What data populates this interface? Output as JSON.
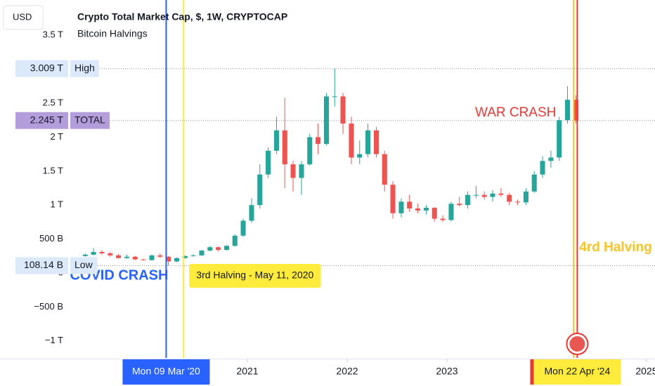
{
  "chart_data": {
    "type": "candlestick",
    "currency": "USD",
    "title": "Crypto Total Market Cap, $, 1W, CRYPTOCAP",
    "subtitle": "Bitcoin Halvings",
    "x": [
      2019.375,
      2019.458,
      2019.542,
      2019.625,
      2019.708,
      2019.792,
      2019.875,
      2019.958,
      2020.042,
      2020.125,
      2020.208,
      2020.292,
      2020.375,
      2020.458,
      2020.542,
      2020.625,
      2020.708,
      2020.792,
      2020.875,
      2020.958,
      2021.042,
      2021.125,
      2021.208,
      2021.292,
      2021.375,
      2021.458,
      2021.542,
      2021.625,
      2021.708,
      2021.792,
      2021.875,
      2021.958,
      2022.042,
      2022.125,
      2022.208,
      2022.292,
      2022.375,
      2022.458,
      2022.542,
      2022.625,
      2022.708,
      2022.792,
      2022.875,
      2022.958,
      2023.042,
      2023.125,
      2023.208,
      2023.292,
      2023.375,
      2023.458,
      2023.542,
      2023.625,
      2023.708,
      2023.792,
      2023.875,
      2023.958,
      2024.042,
      2024.125,
      2024.208,
      2024.292
    ],
    "open": [
      0.25,
      0.27,
      0.31,
      0.29,
      0.26,
      0.22,
      0.24,
      0.2,
      0.19,
      0.26,
      0.24,
      0.17,
      0.22,
      0.25,
      0.26,
      0.33,
      0.38,
      0.34,
      0.4,
      0.55,
      0.77,
      1.0,
      1.45,
      1.8,
      2.1,
      1.6,
      1.4,
      1.6,
      2.0,
      1.9,
      2.6,
      2.6,
      2.2,
      1.7,
      1.75,
      2.1,
      1.75,
      1.3,
      0.88,
      1.05,
      0.95,
      0.92,
      0.96,
      0.8,
      0.78,
      1.02,
      1.0,
      1.15,
      1.15,
      1.12,
      1.17,
      1.15,
      1.05,
      1.04,
      1.2,
      1.45,
      1.65,
      1.7,
      2.25,
      2.55
    ],
    "high": [
      0.29,
      0.37,
      0.34,
      0.31,
      0.28,
      0.27,
      0.25,
      0.21,
      0.27,
      0.29,
      0.25,
      0.23,
      0.26,
      0.28,
      0.34,
      0.4,
      0.39,
      0.41,
      0.57,
      0.8,
      1.1,
      1.6,
      1.85,
      2.3,
      2.58,
      1.65,
      1.65,
      2.05,
      2.2,
      2.65,
      3.009,
      2.65,
      2.3,
      1.95,
      2.2,
      2.15,
      1.8,
      1.35,
      1.1,
      1.15,
      1.02,
      1.0,
      0.97,
      0.85,
      1.05,
      1.12,
      1.2,
      1.28,
      1.2,
      1.22,
      1.25,
      1.18,
      1.08,
      1.25,
      1.5,
      1.72,
      1.8,
      2.3,
      2.75,
      2.62
    ],
    "low": [
      0.24,
      0.26,
      0.27,
      0.24,
      0.21,
      0.21,
      0.19,
      0.18,
      0.18,
      0.22,
      0.10814,
      0.16,
      0.21,
      0.24,
      0.25,
      0.32,
      0.32,
      0.33,
      0.39,
      0.53,
      0.74,
      0.95,
      1.4,
      1.75,
      1.25,
      1.2,
      1.15,
      1.58,
      1.75,
      1.88,
      2.45,
      2.05,
      1.6,
      1.6,
      1.7,
      1.7,
      1.2,
      0.8,
      0.82,
      0.9,
      0.88,
      0.86,
      0.76,
      0.75,
      0.76,
      0.98,
      0.95,
      1.1,
      1.08,
      1.05,
      1.12,
      1.0,
      1.0,
      1.0,
      1.18,
      1.4,
      1.55,
      1.65,
      2.2,
      2.2
    ],
    "close": [
      0.27,
      0.31,
      0.29,
      0.26,
      0.22,
      0.24,
      0.2,
      0.19,
      0.26,
      0.24,
      0.17,
      0.22,
      0.25,
      0.26,
      0.33,
      0.38,
      0.34,
      0.4,
      0.55,
      0.77,
      1.0,
      1.45,
      1.8,
      2.1,
      1.6,
      1.4,
      1.6,
      2.0,
      1.9,
      2.6,
      2.6,
      2.2,
      1.7,
      1.75,
      2.1,
      1.75,
      1.3,
      0.88,
      1.05,
      0.95,
      0.92,
      0.96,
      0.8,
      0.78,
      1.02,
      1.0,
      1.15,
      1.15,
      1.12,
      1.17,
      1.15,
      1.05,
      1.04,
      1.2,
      1.45,
      1.65,
      1.7,
      2.25,
      2.55,
      2.245
    ],
    "up_color": "#26a69a",
    "down_color": "#ef5350",
    "xlim": [
      2019.225,
      2025.085
    ],
    "xticks": [
      2021,
      2022,
      2023,
      2025
    ],
    "ylim": [
      -1.25,
      4.019
    ],
    "yticks": [
      {
        "value": -1,
        "label": "−1 T"
      },
      {
        "value": -0.5,
        "label": "−500 B"
      },
      0,
      {
        "value": 0.5,
        "label": "500 B"
      },
      {
        "value": 1,
        "label": "1 T"
      },
      {
        "value": 1.5,
        "label": "1.5 T"
      },
      {
        "value": 2,
        "label": "2 T"
      },
      {
        "value": 2.5,
        "label": "2.5 T"
      },
      {
        "value": 3.5,
        "label": "3.5 T"
      }
    ],
    "levels": [
      {
        "value": 3.009,
        "value_label": "3.009 T",
        "name": "High",
        "color": "#dce9fb"
      },
      {
        "value": 2.245,
        "value_label": "2.245 T",
        "name": "TOTAL",
        "color": "#b39ddb"
      },
      {
        "value": 0.10814,
        "value_label": "108.14 B",
        "name": "Low",
        "color": "#dce9fb"
      }
    ],
    "events": [
      {
        "x": 2020.186,
        "date_label": "Mon 09 Mar '20",
        "note": "COVID CRASH",
        "color": "#2962ff"
      },
      {
        "x": 2020.361,
        "note": "3rd Halving - May 11, 2020",
        "color": "#ffeb3b"
      },
      {
        "x": 2024.27,
        "note": "4rd Halving",
        "color": "#f7c325"
      },
      {
        "x": 2024.306,
        "date_label": "Mon 22 Apr '24",
        "note": "WAR CRASH",
        "color": "#e53935"
      }
    ]
  }
}
